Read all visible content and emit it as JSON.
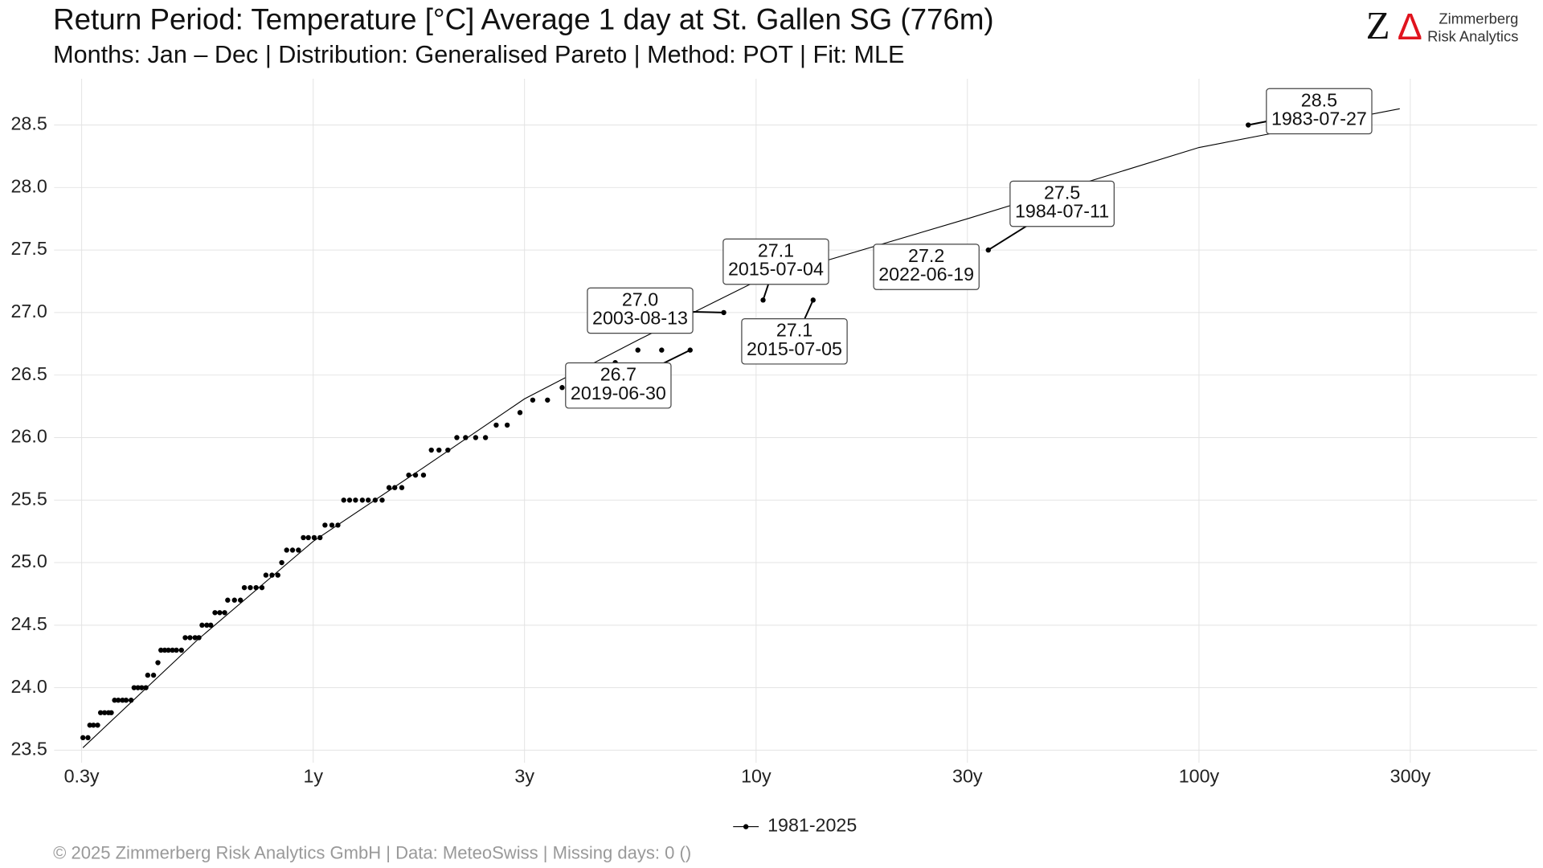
{
  "chart_data": {
    "type": "scatter",
    "title": "Return Period: Temperature [°C] Average 1 day at St. Gallen  SG (776m)",
    "subtitle": "Months: Jan – Dec | Distribution: Generalised Pareto | Method: POT | Fit: MLE",
    "footer": "©  2025 Zimmerberg Risk Analytics GmbH | Data: MeteoSwiss | Missing days: 0 ()",
    "branding": {
      "mark_z": "Z",
      "mark_delta": "Δ",
      "line1": "Zimmerberg",
      "line2": "Risk Analytics"
    },
    "xscale": "log",
    "xlim": [
      0.26,
      580
    ],
    "ylim": [
      23.4,
      28.87
    ],
    "grid": true,
    "legend": "bottom",
    "xticks": [
      {
        "value": 0.3,
        "label": "0.3y"
      },
      {
        "value": 1,
        "label": "1y"
      },
      {
        "value": 3,
        "label": "3y"
      },
      {
        "value": 10,
        "label": "10y"
      },
      {
        "value": 30,
        "label": "30y"
      },
      {
        "value": 100,
        "label": "100y"
      },
      {
        "value": 300,
        "label": "300y"
      }
    ],
    "yticks": [
      23.5,
      {
        "value": 24,
        "label": "24.0"
      },
      24.5,
      {
        "value": 25,
        "label": "25.0"
      },
      25.5,
      {
        "value": 26,
        "label": "26.0"
      },
      26.5,
      {
        "value": 27,
        "label": "27.0"
      },
      27.5,
      {
        "value": 28,
        "label": "28.0"
      },
      28.5
    ],
    "series": [
      {
        "name": "1981-2025",
        "color": "#000000",
        "x": [
          0.302,
          0.31,
          0.313,
          0.319,
          0.326,
          0.331,
          0.338,
          0.345,
          0.35,
          0.356,
          0.363,
          0.371,
          0.378,
          0.388,
          0.394,
          0.402,
          0.41,
          0.419,
          0.423,
          0.436,
          0.446,
          0.453,
          0.462,
          0.471,
          0.481,
          0.491,
          0.504,
          0.514,
          0.527,
          0.541,
          0.552,
          0.561,
          0.575,
          0.587,
          0.6,
          0.615,
          0.631,
          0.641,
          0.664,
          0.685,
          0.699,
          0.721,
          0.743,
          0.766,
          0.782,
          0.807,
          0.832,
          0.849,
          0.871,
          0.898,
          0.926,
          0.95,
          0.975,
          1.005,
          1.036,
          1.063,
          1.102,
          1.137,
          1.172,
          1.208,
          1.246,
          1.291,
          1.331,
          1.38,
          1.431,
          1.483,
          1.528,
          1.585,
          1.643,
          1.702,
          1.774,
          1.848,
          1.923,
          2.014,
          2.11,
          2.208,
          2.327,
          2.449,
          2.589,
          2.742,
          2.93,
          3.131,
          3.381,
          3.648,
          4.808,
          5.408,
          6.12,
          7.097,
          8.452,
          10.37,
          13.45,
          19.15,
          33.44,
          129.2
        ],
        "values": [
          23.6,
          23.6,
          23.7,
          23.7,
          23.7,
          23.8,
          23.8,
          23.8,
          23.8,
          23.9,
          23.9,
          23.9,
          23.9,
          23.9,
          24.0,
          24.0,
          24.0,
          24.0,
          24.1,
          24.1,
          24.2,
          24.3,
          24.3,
          24.3,
          24.3,
          24.3,
          24.3,
          24.4,
          24.4,
          24.4,
          24.4,
          24.5,
          24.5,
          24.5,
          24.6,
          24.6,
          24.6,
          24.7,
          24.7,
          24.7,
          24.8,
          24.8,
          24.8,
          24.8,
          24.9,
          24.9,
          24.9,
          25.0,
          25.1,
          25.1,
          25.1,
          25.2,
          25.2,
          25.2,
          25.2,
          25.3,
          25.3,
          25.3,
          25.5,
          25.5,
          25.5,
          25.5,
          25.5,
          25.5,
          25.5,
          25.6,
          25.6,
          25.6,
          25.7,
          25.7,
          25.7,
          25.9,
          25.9,
          25.9,
          26.0,
          26.0,
          26.0,
          26.0,
          26.1,
          26.1,
          26.2,
          26.3,
          26.3,
          26.4,
          26.6,
          26.7,
          26.7,
          26.7,
          27.0,
          27.1,
          27.1,
          27.2,
          27.5,
          28.5
        ]
      }
    ],
    "fit_line": {
      "color": "#000000",
      "x": [
        0.302,
        0.547,
        1,
        1.774,
        3,
        5.41,
        10,
        30,
        100,
        284
      ],
      "values": [
        23.52,
        24.38,
        25.17,
        25.76,
        26.31,
        26.78,
        27.25,
        27.75,
        28.32,
        28.63
      ]
    },
    "annotations": [
      {
        "value_label": "28.5",
        "date": "1983-07-27",
        "x": 129.2,
        "y": 28.5
      },
      {
        "value_label": "27.5",
        "date": "1984-07-11",
        "x": 33.44,
        "y": 27.5
      },
      {
        "value_label": "27.2",
        "date": "2022-06-19",
        "x": 19.15,
        "y": 27.2
      },
      {
        "value_label": "27.1",
        "date": "2015-07-04",
        "x": 10.37,
        "y": 27.1
      },
      {
        "value_label": "27.0",
        "date": "2003-08-13",
        "x": 8.452,
        "y": 27.0
      },
      {
        "value_label": "27.1",
        "date": "2015-07-05",
        "x": 13.45,
        "y": 27.1
      },
      {
        "value_label": "26.7",
        "date": "2019-06-30",
        "x": 7.097,
        "y": 26.7
      }
    ]
  }
}
